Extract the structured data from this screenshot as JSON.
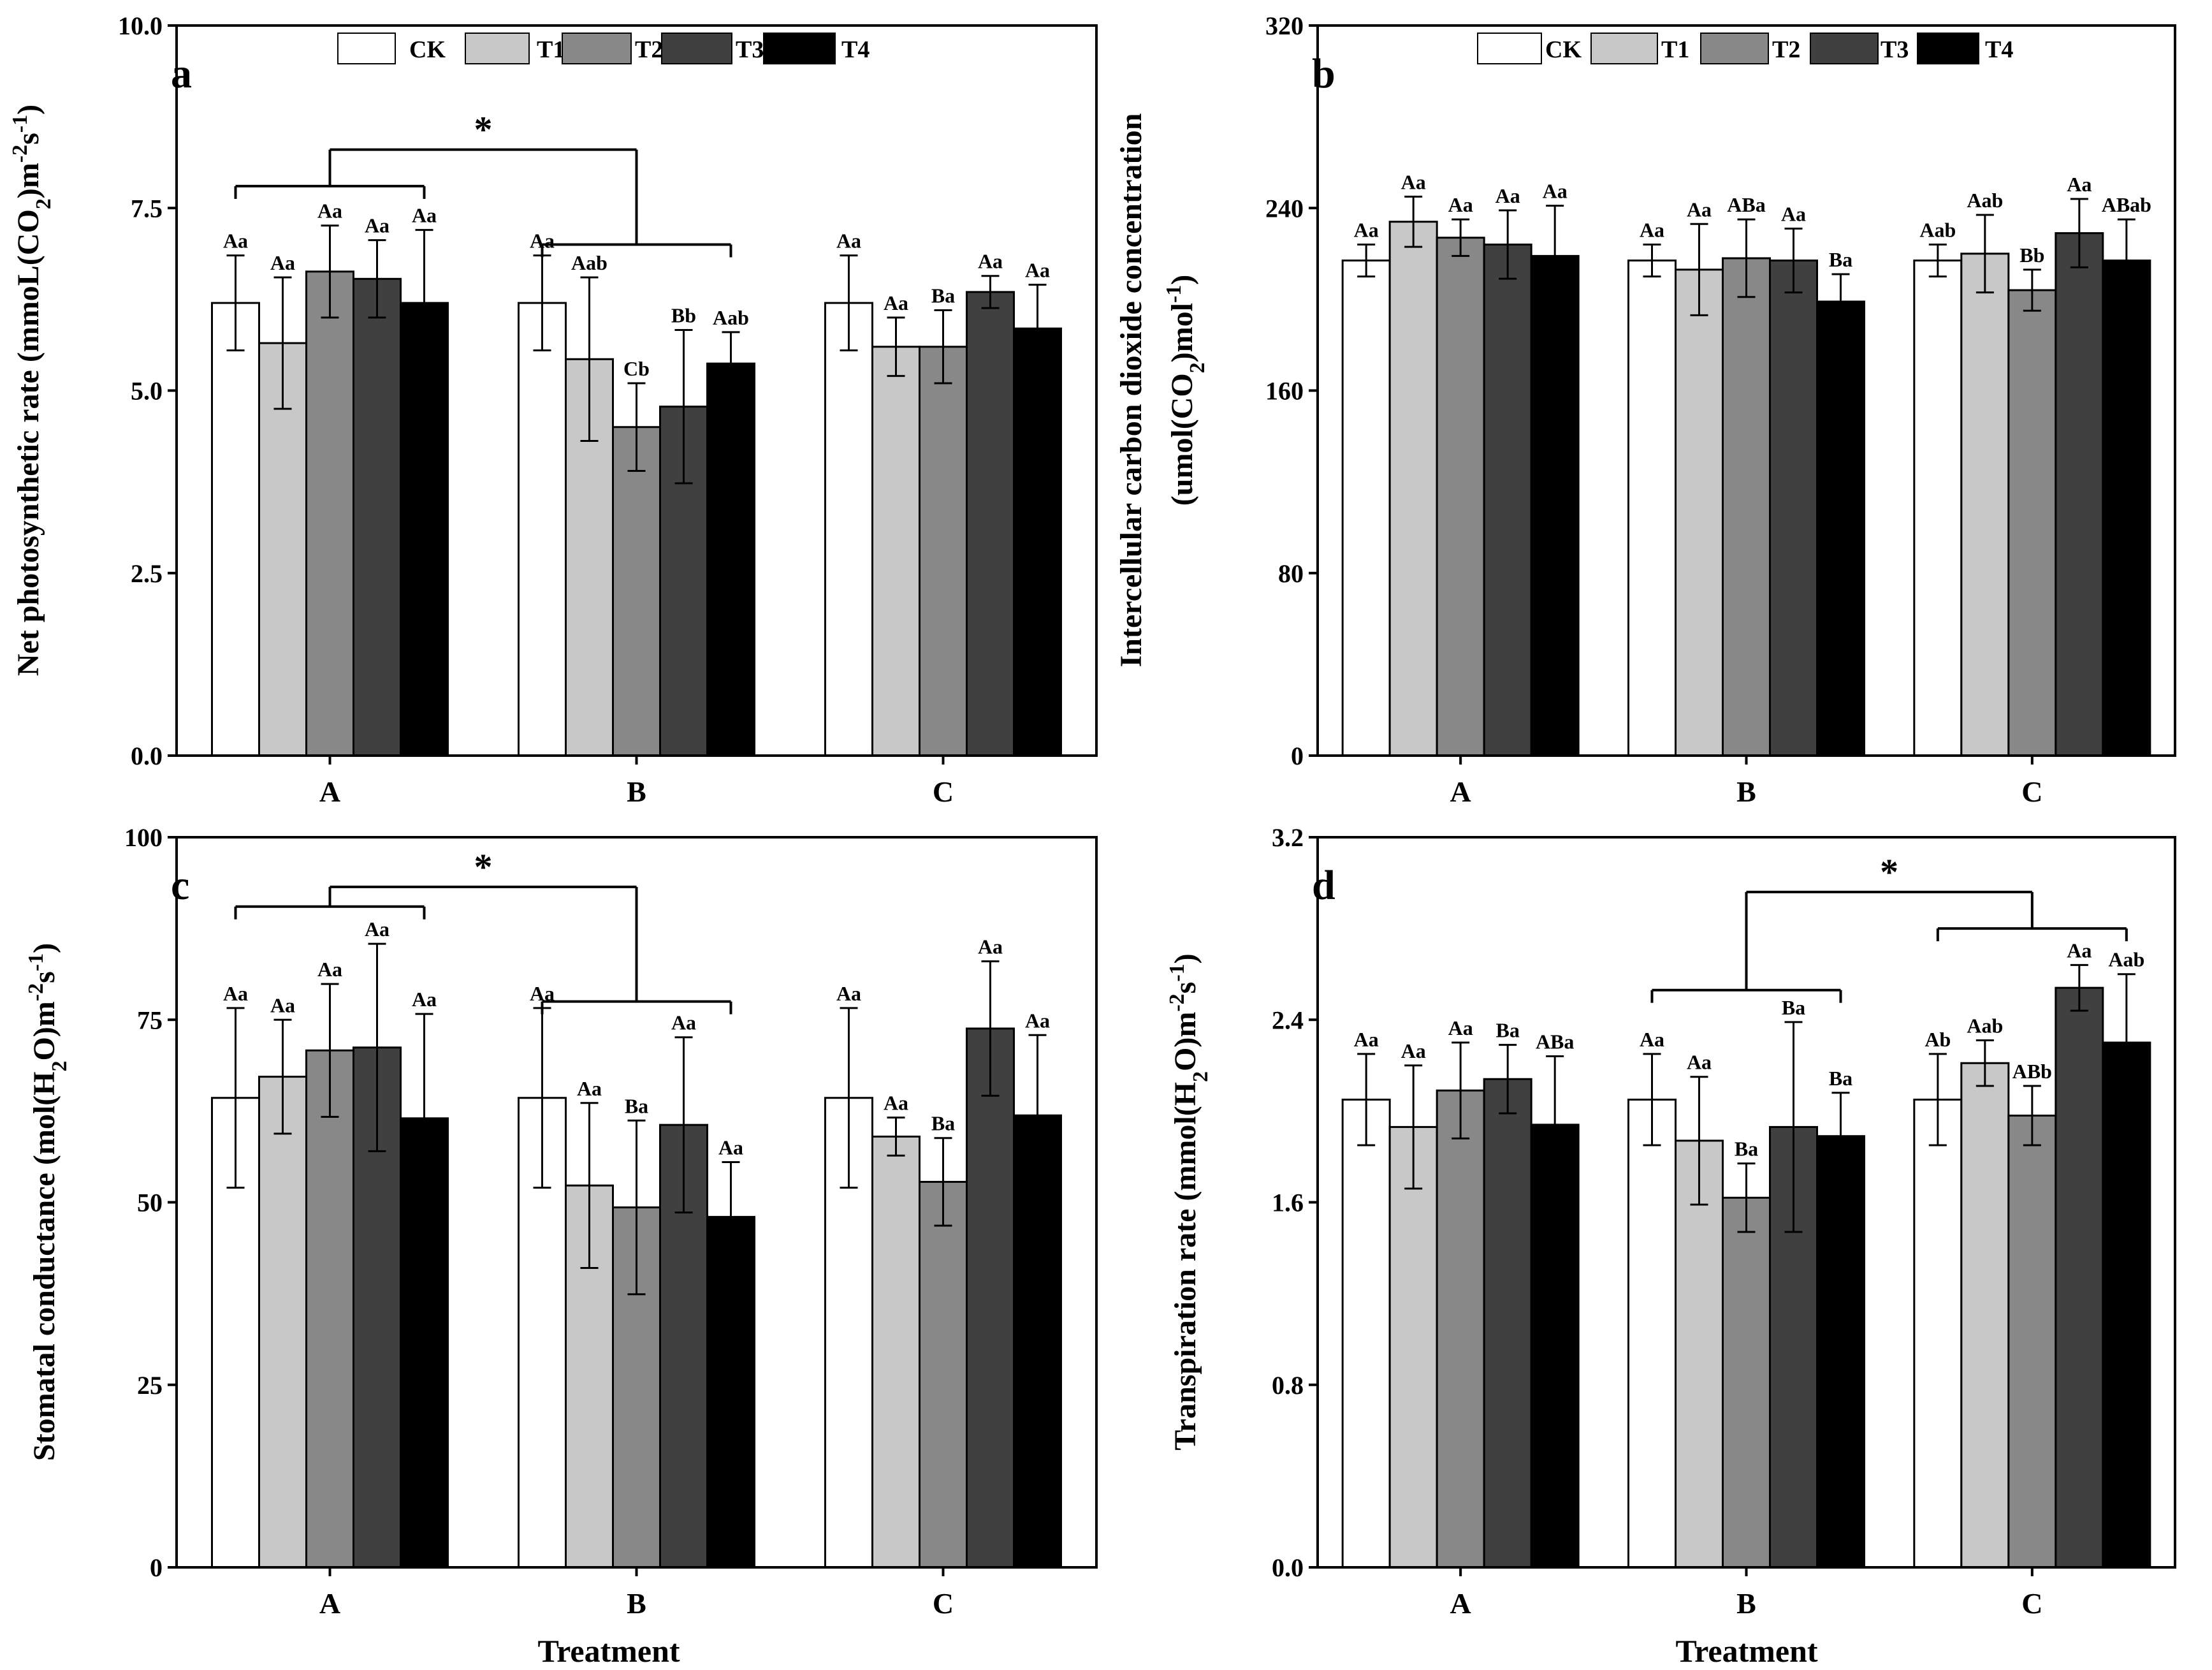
{
  "colors": {
    "CK": "#ffffff",
    "T1": "#c8c8c8",
    "T2": "#888888",
    "T3": "#404040",
    "T4": "#000000"
  },
  "legend": [
    "CK",
    "T1",
    "T2",
    "T3",
    "T4"
  ],
  "xlabel": "Treatment",
  "chart_data": [
    {
      "id": "a",
      "type": "bar",
      "panel_label": "a",
      "ylabel": "Net photosynthetic rate (mmoL(CO2)m-2s-1)",
      "ylabel_parts": [
        "Net photosynthetic rate (mmoL(CO",
        "2",
        ")m",
        "-2",
        "s",
        "-1",
        ")"
      ],
      "ylim": [
        0,
        10
      ],
      "yticks": [
        0,
        2.5,
        5,
        7.5,
        10
      ],
      "ytick_labels": [
        "0.0",
        "2.5",
        "5.0",
        "7.5",
        "10.0"
      ],
      "categories": [
        "A",
        "B",
        "C"
      ],
      "series": [
        {
          "name": "CK",
          "values": [
            6.2,
            6.2,
            6.2
          ],
          "errors": [
            0.65,
            0.65,
            0.65
          ],
          "labels": [
            "Aa",
            "Aa",
            "Aa"
          ]
        },
        {
          "name": "T1",
          "values": [
            5.65,
            5.43,
            5.6
          ],
          "errors": [
            0.9,
            1.12,
            0.4
          ],
          "labels": [
            "Aa",
            "Aab",
            "Aa"
          ]
        },
        {
          "name": "T2",
          "values": [
            6.63,
            4.5,
            5.6
          ],
          "errors": [
            0.63,
            0.6,
            0.5
          ],
          "labels": [
            "Aa",
            "Cb",
            "Ba"
          ]
        },
        {
          "name": "T3",
          "values": [
            6.53,
            4.78,
            6.35
          ],
          "errors": [
            0.53,
            1.05,
            0.22
          ],
          "labels": [
            "Aa",
            "Bb",
            "Aa"
          ]
        },
        {
          "name": "T4",
          "values": [
            6.2,
            5.37,
            5.85
          ],
          "errors": [
            1.0,
            0.43,
            0.6
          ],
          "labels": [
            "Aa",
            "Aab",
            "Aa"
          ]
        }
      ],
      "brackets": [
        {
          "kind": "group",
          "group": 0,
          "level": 7.8
        },
        {
          "kind": "group",
          "group": 1,
          "level": 7.0
        },
        {
          "kind": "between",
          "from": 0,
          "to": 1,
          "level": 8.3,
          "label": "*"
        }
      ]
    },
    {
      "id": "b",
      "type": "bar",
      "panel_label": "b",
      "ylabel": "Intercellular carbon dioxide concentration (umol(CO2)mol-1)",
      "ylabel_line1": "Intercellular carbon dioxide concentration",
      "ylabel_parts": [
        "(umol(CO",
        "2",
        ")mol",
        "-1",
        ")"
      ],
      "ylim": [
        0,
        320
      ],
      "yticks": [
        0,
        80,
        160,
        240,
        320
      ],
      "ytick_labels": [
        "0",
        "80",
        "160",
        "240",
        "320"
      ],
      "categories": [
        "A",
        "B",
        "C"
      ],
      "series": [
        {
          "name": "CK",
          "values": [
            217,
            217,
            217
          ],
          "errors": [
            7,
            7,
            7
          ],
          "labels": [
            "Aa",
            "Aa",
            "Aab"
          ]
        },
        {
          "name": "T1",
          "values": [
            234,
            213,
            220
          ],
          "errors": [
            11,
            20,
            17
          ],
          "labels": [
            "Aa",
            "Aa",
            "Aab"
          ]
        },
        {
          "name": "T2",
          "values": [
            227,
            218,
            204
          ],
          "errors": [
            8,
            17,
            9
          ],
          "labels": [
            "Aa",
            "ABa",
            "Bb"
          ]
        },
        {
          "name": "T3",
          "values": [
            224,
            217,
            229
          ],
          "errors": [
            15,
            14,
            15
          ],
          "labels": [
            "Aa",
            "Aa",
            "Aa"
          ]
        },
        {
          "name": "T4",
          "values": [
            219,
            199,
            217
          ],
          "errors": [
            22,
            12,
            18
          ],
          "labels": [
            "Aa",
            "Ba",
            "ABab"
          ]
        }
      ],
      "brackets": []
    },
    {
      "id": "c",
      "type": "bar",
      "panel_label": "c",
      "ylabel": "Stomatal conductance (mol(H2O)m-2s-1)",
      "ylabel_parts": [
        "Stomatal conductance (mol(H",
        "2",
        "O)m",
        "-2",
        "s",
        "-1",
        ")"
      ],
      "ylim": [
        0,
        100
      ],
      "yticks": [
        0,
        25,
        50,
        75,
        100
      ],
      "ytick_labels": [
        "0",
        "25",
        "50",
        "75",
        "100"
      ],
      "categories": [
        "A",
        "B",
        "C"
      ],
      "series": [
        {
          "name": "CK",
          "values": [
            64.3,
            64.3,
            64.3
          ],
          "errors": [
            12.3,
            12.3,
            12.3
          ],
          "labels": [
            "Aa",
            "Aa",
            "Aa"
          ]
        },
        {
          "name": "T1",
          "values": [
            67.2,
            52.3,
            59
          ],
          "errors": [
            7.8,
            11.3,
            2.6
          ],
          "labels": [
            "Aa",
            "Aa",
            "Aa"
          ]
        },
        {
          "name": "T2",
          "values": [
            70.8,
            49.3,
            52.8
          ],
          "errors": [
            9.1,
            11.9,
            6
          ],
          "labels": [
            "Aa",
            "Ba",
            "Ba"
          ]
        },
        {
          "name": "T3",
          "values": [
            71.2,
            60.6,
            73.8
          ],
          "errors": [
            14.2,
            12,
            9.2
          ],
          "labels": [
            "Aa",
            "Aa",
            "Aa"
          ]
        },
        {
          "name": "T4",
          "values": [
            61.5,
            48,
            61.9
          ],
          "errors": [
            14.3,
            7.5,
            11
          ],
          "labels": [
            "Aa",
            "Aa",
            "Aa"
          ]
        }
      ],
      "brackets": [
        {
          "kind": "group",
          "group": 0,
          "level": 90.5
        },
        {
          "kind": "group",
          "group": 1,
          "level": 77.5
        },
        {
          "kind": "between",
          "from": 0,
          "to": 1,
          "level": 93.2,
          "label": "*"
        }
      ]
    },
    {
      "id": "d",
      "type": "bar",
      "panel_label": "d",
      "ylabel": "Transpiration rate (mmol(H2O)m-2s-1)",
      "ylabel_parts": [
        "Transpiration rate (mmol(H",
        "2",
        "O)m",
        "-2",
        "s",
        "-1",
        ")"
      ],
      "ylim": [
        0,
        3.2
      ],
      "yticks": [
        0,
        0.8,
        1.6,
        2.4,
        3.2
      ],
      "ytick_labels": [
        "0.0",
        "0.8",
        "1.6",
        "2.4",
        "3.2"
      ],
      "categories": [
        "A",
        "B",
        "C"
      ],
      "series": [
        {
          "name": "CK",
          "values": [
            2.05,
            2.05,
            2.05
          ],
          "errors": [
            0.2,
            0.2,
            0.2
          ],
          "labels": [
            "Aa",
            "Aa",
            "Ab"
          ]
        },
        {
          "name": "T1",
          "values": [
            1.93,
            1.87,
            2.21
          ],
          "errors": [
            0.27,
            0.28,
            0.1
          ],
          "labels": [
            "Aa",
            "Aa",
            "Aab"
          ]
        },
        {
          "name": "T2",
          "values": [
            2.09,
            1.62,
            1.98
          ],
          "errors": [
            0.21,
            0.15,
            0.13
          ],
          "labels": [
            "Aa",
            "Ba",
            "ABb"
          ]
        },
        {
          "name": "T3",
          "values": [
            2.14,
            1.93,
            2.54
          ],
          "errors": [
            0.15,
            0.46,
            0.1
          ],
          "labels": [
            "Ba",
            "Ba",
            "Aa"
          ]
        },
        {
          "name": "T4",
          "values": [
            1.94,
            1.89,
            2.3
          ],
          "errors": [
            0.3,
            0.19,
            0.3
          ],
          "labels": [
            "ABa",
            "Ba",
            "Aab"
          ]
        }
      ],
      "brackets": [
        {
          "kind": "group",
          "group": 1,
          "level": 2.53
        },
        {
          "kind": "group",
          "group": 2,
          "level": 2.8
        },
        {
          "kind": "between",
          "from": 1,
          "to": 2,
          "level": 2.96,
          "label": "*"
        }
      ]
    }
  ]
}
